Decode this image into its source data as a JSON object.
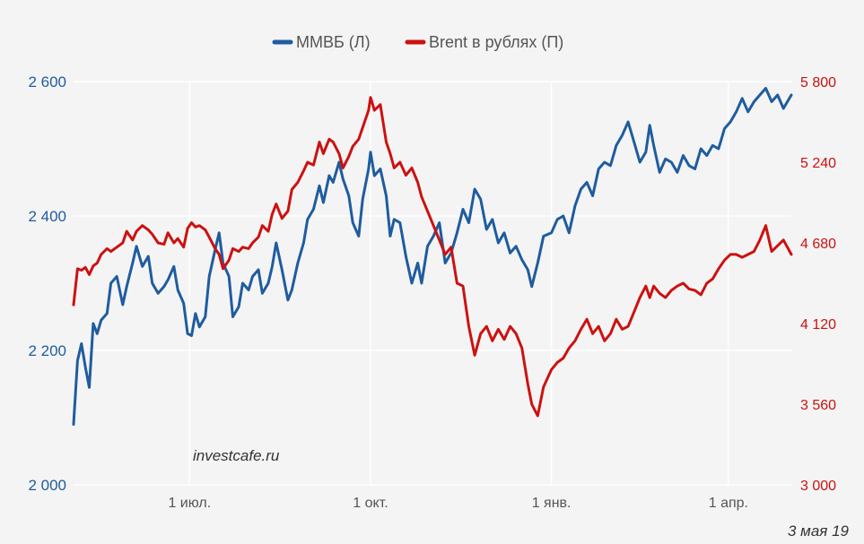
{
  "chart_data": {
    "type": "line",
    "legend_position": "top-center",
    "grid": true,
    "x_ticks": [
      "1 июл.",
      "1 окт.",
      "1 янв.",
      "1 апр."
    ],
    "y_left": {
      "lim": [
        2000,
        2600
      ],
      "ticks": [
        "2 000",
        "2 200",
        "2 400",
        "2 600"
      ],
      "color": "#1f5c9e"
    },
    "y_right": {
      "lim": [
        3000,
        5800
      ],
      "ticks": [
        "3 000",
        "3 560",
        "4 120",
        "4 680",
        "5 240",
        "5 800"
      ],
      "color": "#cc1111"
    },
    "x_range": [
      "2018-05-03",
      "2019-05-03"
    ],
    "x_tick_dates": [
      "2018-07-01",
      "2018-10-01",
      "2019-01-01",
      "2019-04-01"
    ],
    "series": [
      {
        "name": "ММВБ (Л)",
        "axis": "left",
        "color": "#1f5c9e",
        "points": [
          [
            "2018-05-03",
            2090
          ],
          [
            "2018-05-05",
            2185
          ],
          [
            "2018-05-07",
            2210
          ],
          [
            "2018-05-09",
            2175
          ],
          [
            "2018-05-11",
            2145
          ],
          [
            "2018-05-13",
            2240
          ],
          [
            "2018-05-15",
            2225
          ],
          [
            "2018-05-17",
            2245
          ],
          [
            "2018-05-20",
            2255
          ],
          [
            "2018-05-22",
            2300
          ],
          [
            "2018-05-25",
            2310
          ],
          [
            "2018-05-28",
            2268
          ],
          [
            "2018-05-30",
            2295
          ],
          [
            "2018-06-02",
            2330
          ],
          [
            "2018-06-04",
            2355
          ],
          [
            "2018-06-07",
            2325
          ],
          [
            "2018-06-10",
            2340
          ],
          [
            "2018-06-12",
            2300
          ],
          [
            "2018-06-15",
            2285
          ],
          [
            "2018-06-18",
            2295
          ],
          [
            "2018-06-20",
            2305
          ],
          [
            "2018-06-23",
            2325
          ],
          [
            "2018-06-25",
            2290
          ],
          [
            "2018-06-28",
            2270
          ],
          [
            "2018-06-30",
            2225
          ],
          [
            "2018-07-02",
            2222
          ],
          [
            "2018-07-04",
            2255
          ],
          [
            "2018-07-06",
            2235
          ],
          [
            "2018-07-09",
            2250
          ],
          [
            "2018-07-11",
            2310
          ],
          [
            "2018-07-14",
            2350
          ],
          [
            "2018-07-16",
            2375
          ],
          [
            "2018-07-18",
            2330
          ],
          [
            "2018-07-21",
            2310
          ],
          [
            "2018-07-23",
            2250
          ],
          [
            "2018-07-26",
            2265
          ],
          [
            "2018-07-28",
            2300
          ],
          [
            "2018-07-31",
            2290
          ],
          [
            "2018-08-02",
            2310
          ],
          [
            "2018-08-05",
            2320
          ],
          [
            "2018-08-07",
            2285
          ],
          [
            "2018-08-10",
            2300
          ],
          [
            "2018-08-12",
            2325
          ],
          [
            "2018-08-14",
            2360
          ],
          [
            "2018-08-17",
            2320
          ],
          [
            "2018-08-20",
            2275
          ],
          [
            "2018-08-22",
            2290
          ],
          [
            "2018-08-25",
            2330
          ],
          [
            "2018-08-28",
            2360
          ],
          [
            "2018-08-30",
            2395
          ],
          [
            "2018-09-02",
            2410
          ],
          [
            "2018-09-05",
            2445
          ],
          [
            "2018-09-07",
            2420
          ],
          [
            "2018-09-10",
            2460
          ],
          [
            "2018-09-12",
            2450
          ],
          [
            "2018-09-15",
            2480
          ],
          [
            "2018-09-17",
            2455
          ],
          [
            "2018-09-20",
            2430
          ],
          [
            "2018-09-22",
            2390
          ],
          [
            "2018-09-25",
            2370
          ],
          [
            "2018-09-27",
            2425
          ],
          [
            "2018-09-30",
            2470
          ],
          [
            "2018-10-01",
            2495
          ],
          [
            "2018-10-03",
            2460
          ],
          [
            "2018-10-06",
            2470
          ],
          [
            "2018-10-09",
            2430
          ],
          [
            "2018-10-11",
            2370
          ],
          [
            "2018-10-13",
            2395
          ],
          [
            "2018-10-16",
            2390
          ],
          [
            "2018-10-19",
            2340
          ],
          [
            "2018-10-22",
            2300
          ],
          [
            "2018-10-25",
            2330
          ],
          [
            "2018-10-27",
            2300
          ],
          [
            "2018-10-30",
            2355
          ],
          [
            "2018-11-02",
            2370
          ],
          [
            "2018-11-05",
            2390
          ],
          [
            "2018-11-08",
            2330
          ],
          [
            "2018-11-11",
            2345
          ],
          [
            "2018-11-14",
            2375
          ],
          [
            "2018-11-17",
            2410
          ],
          [
            "2018-11-20",
            2390
          ],
          [
            "2018-11-23",
            2440
          ],
          [
            "2018-11-26",
            2425
          ],
          [
            "2018-11-29",
            2380
          ],
          [
            "2018-12-02",
            2395
          ],
          [
            "2018-12-05",
            2360
          ],
          [
            "2018-12-08",
            2375
          ],
          [
            "2018-12-11",
            2345
          ],
          [
            "2018-12-14",
            2355
          ],
          [
            "2018-12-17",
            2335
          ],
          [
            "2018-12-20",
            2320
          ],
          [
            "2018-12-22",
            2295
          ],
          [
            "2018-12-25",
            2330
          ],
          [
            "2018-12-28",
            2370
          ],
          [
            "2019-01-01",
            2375
          ],
          [
            "2019-01-04",
            2395
          ],
          [
            "2019-01-07",
            2400
          ],
          [
            "2019-01-10",
            2375
          ],
          [
            "2019-01-13",
            2415
          ],
          [
            "2019-01-16",
            2440
          ],
          [
            "2019-01-19",
            2450
          ],
          [
            "2019-01-22",
            2430
          ],
          [
            "2019-01-25",
            2470
          ],
          [
            "2019-01-28",
            2480
          ],
          [
            "2019-01-31",
            2475
          ],
          [
            "2019-02-03",
            2505
          ],
          [
            "2019-02-06",
            2520
          ],
          [
            "2019-02-09",
            2540
          ],
          [
            "2019-02-12",
            2510
          ],
          [
            "2019-02-15",
            2480
          ],
          [
            "2019-02-18",
            2495
          ],
          [
            "2019-02-20",
            2535
          ],
          [
            "2019-02-22",
            2505
          ],
          [
            "2019-02-25",
            2465
          ],
          [
            "2019-02-28",
            2485
          ],
          [
            "2019-03-03",
            2480
          ],
          [
            "2019-03-06",
            2465
          ],
          [
            "2019-03-09",
            2490
          ],
          [
            "2019-03-12",
            2475
          ],
          [
            "2019-03-15",
            2470
          ],
          [
            "2019-03-18",
            2500
          ],
          [
            "2019-03-21",
            2490
          ],
          [
            "2019-03-24",
            2505
          ],
          [
            "2019-03-27",
            2500
          ],
          [
            "2019-03-30",
            2530
          ],
          [
            "2019-04-02",
            2540
          ],
          [
            "2019-04-05",
            2555
          ],
          [
            "2019-04-08",
            2575
          ],
          [
            "2019-04-11",
            2555
          ],
          [
            "2019-04-14",
            2570
          ],
          [
            "2019-04-17",
            2580
          ],
          [
            "2019-04-20",
            2590
          ],
          [
            "2019-04-23",
            2570
          ],
          [
            "2019-04-26",
            2580
          ],
          [
            "2019-04-29",
            2560
          ],
          [
            "2019-05-03",
            2580
          ]
        ]
      },
      {
        "name": "Brent в рублях (П)",
        "axis": "right",
        "color": "#cc1111",
        "points": [
          [
            "2018-05-03",
            4250
          ],
          [
            "2018-05-05",
            4500
          ],
          [
            "2018-05-07",
            4490
          ],
          [
            "2018-05-09",
            4510
          ],
          [
            "2018-05-11",
            4460
          ],
          [
            "2018-05-13",
            4520
          ],
          [
            "2018-05-15",
            4540
          ],
          [
            "2018-05-17",
            4600
          ],
          [
            "2018-05-20",
            4640
          ],
          [
            "2018-05-22",
            4620
          ],
          [
            "2018-05-25",
            4650
          ],
          [
            "2018-05-28",
            4680
          ],
          [
            "2018-05-30",
            4760
          ],
          [
            "2018-06-02",
            4700
          ],
          [
            "2018-06-04",
            4760
          ],
          [
            "2018-06-07",
            4800
          ],
          [
            "2018-06-10",
            4770
          ],
          [
            "2018-06-12",
            4740
          ],
          [
            "2018-06-15",
            4680
          ],
          [
            "2018-06-18",
            4670
          ],
          [
            "2018-06-20",
            4750
          ],
          [
            "2018-06-23",
            4680
          ],
          [
            "2018-06-25",
            4710
          ],
          [
            "2018-06-28",
            4650
          ],
          [
            "2018-06-30",
            4780
          ],
          [
            "2018-07-02",
            4820
          ],
          [
            "2018-07-04",
            4790
          ],
          [
            "2018-07-06",
            4800
          ],
          [
            "2018-07-09",
            4770
          ],
          [
            "2018-07-11",
            4720
          ],
          [
            "2018-07-14",
            4640
          ],
          [
            "2018-07-16",
            4600
          ],
          [
            "2018-07-18",
            4500
          ],
          [
            "2018-07-21",
            4560
          ],
          [
            "2018-07-23",
            4640
          ],
          [
            "2018-07-26",
            4620
          ],
          [
            "2018-07-28",
            4650
          ],
          [
            "2018-07-31",
            4640
          ],
          [
            "2018-08-02",
            4680
          ],
          [
            "2018-08-05",
            4720
          ],
          [
            "2018-08-07",
            4800
          ],
          [
            "2018-08-10",
            4760
          ],
          [
            "2018-08-12",
            4880
          ],
          [
            "2018-08-14",
            4950
          ],
          [
            "2018-08-17",
            4850
          ],
          [
            "2018-08-20",
            4900
          ],
          [
            "2018-08-22",
            5050
          ],
          [
            "2018-08-25",
            5100
          ],
          [
            "2018-08-28",
            5180
          ],
          [
            "2018-08-30",
            5240
          ],
          [
            "2018-09-02",
            5220
          ],
          [
            "2018-09-05",
            5380
          ],
          [
            "2018-09-07",
            5300
          ],
          [
            "2018-09-10",
            5400
          ],
          [
            "2018-09-12",
            5380
          ],
          [
            "2018-09-15",
            5300
          ],
          [
            "2018-09-17",
            5200
          ],
          [
            "2018-09-20",
            5280
          ],
          [
            "2018-09-22",
            5350
          ],
          [
            "2018-09-25",
            5400
          ],
          [
            "2018-09-27",
            5480
          ],
          [
            "2018-09-30",
            5600
          ],
          [
            "2018-10-01",
            5690
          ],
          [
            "2018-10-03",
            5600
          ],
          [
            "2018-10-06",
            5640
          ],
          [
            "2018-10-09",
            5380
          ],
          [
            "2018-10-11",
            5300
          ],
          [
            "2018-10-13",
            5200
          ],
          [
            "2018-10-16",
            5240
          ],
          [
            "2018-10-19",
            5150
          ],
          [
            "2018-10-22",
            5200
          ],
          [
            "2018-10-25",
            5100
          ],
          [
            "2018-10-27",
            5000
          ],
          [
            "2018-10-30",
            4900
          ],
          [
            "2018-11-02",
            4800
          ],
          [
            "2018-11-05",
            4700
          ],
          [
            "2018-11-08",
            4600
          ],
          [
            "2018-11-11",
            4650
          ],
          [
            "2018-11-14",
            4400
          ],
          [
            "2018-11-17",
            4380
          ],
          [
            "2018-11-20",
            4100
          ],
          [
            "2018-11-23",
            3900
          ],
          [
            "2018-11-26",
            4050
          ],
          [
            "2018-11-29",
            4100
          ],
          [
            "2018-12-02",
            4000
          ],
          [
            "2018-12-05",
            4080
          ],
          [
            "2018-12-08",
            4010
          ],
          [
            "2018-12-11",
            4100
          ],
          [
            "2018-12-14",
            4050
          ],
          [
            "2018-12-17",
            3950
          ],
          [
            "2018-12-20",
            3700
          ],
          [
            "2018-12-22",
            3560
          ],
          [
            "2018-12-25",
            3480
          ],
          [
            "2018-12-28",
            3680
          ],
          [
            "2019-01-01",
            3800
          ],
          [
            "2019-01-04",
            3850
          ],
          [
            "2019-01-07",
            3880
          ],
          [
            "2019-01-10",
            3950
          ],
          [
            "2019-01-13",
            4000
          ],
          [
            "2019-01-16",
            4080
          ],
          [
            "2019-01-19",
            4150
          ],
          [
            "2019-01-22",
            4050
          ],
          [
            "2019-01-25",
            4100
          ],
          [
            "2019-01-28",
            4000
          ],
          [
            "2019-01-31",
            4050
          ],
          [
            "2019-02-03",
            4150
          ],
          [
            "2019-02-06",
            4080
          ],
          [
            "2019-02-09",
            4100
          ],
          [
            "2019-02-12",
            4200
          ],
          [
            "2019-02-15",
            4300
          ],
          [
            "2019-02-18",
            4380
          ],
          [
            "2019-02-20",
            4300
          ],
          [
            "2019-02-22",
            4380
          ],
          [
            "2019-02-25",
            4330
          ],
          [
            "2019-02-28",
            4300
          ],
          [
            "2019-03-03",
            4350
          ],
          [
            "2019-03-06",
            4380
          ],
          [
            "2019-03-09",
            4400
          ],
          [
            "2019-03-12",
            4360
          ],
          [
            "2019-03-15",
            4350
          ],
          [
            "2019-03-18",
            4320
          ],
          [
            "2019-03-21",
            4400
          ],
          [
            "2019-03-24",
            4430
          ],
          [
            "2019-03-27",
            4500
          ],
          [
            "2019-03-30",
            4560
          ],
          [
            "2019-04-02",
            4600
          ],
          [
            "2019-04-05",
            4600
          ],
          [
            "2019-04-08",
            4580
          ],
          [
            "2019-04-11",
            4600
          ],
          [
            "2019-04-14",
            4620
          ],
          [
            "2019-04-17",
            4700
          ],
          [
            "2019-04-20",
            4800
          ],
          [
            "2019-04-23",
            4620
          ],
          [
            "2019-04-26",
            4660
          ],
          [
            "2019-04-29",
            4700
          ],
          [
            "2019-05-03",
            4600
          ]
        ]
      }
    ]
  },
  "watermark": "investcafe.ru",
  "date_stamp": "3 мая 19"
}
